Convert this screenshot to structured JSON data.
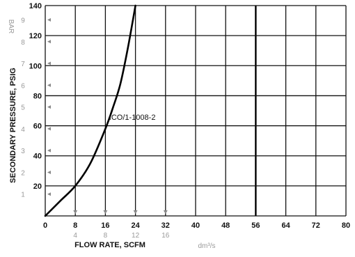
{
  "chart_data": {
    "type": "line",
    "xlabel": "FLOW RATE, SCFM",
    "ylabel": "SECONDARY PRESSURE, PSIG",
    "x_alt_label": "dm³/s",
    "y_alt_label": "BAR",
    "xlim": [
      0,
      80
    ],
    "ylim": [
      0,
      140
    ],
    "x_ticks": [
      0,
      8,
      16,
      24,
      32,
      40,
      48,
      56,
      64,
      72,
      80
    ],
    "y_ticks": [
      20,
      40,
      60,
      80,
      100,
      120,
      140
    ],
    "x_alt_ticks": [
      {
        "label": "4",
        "x": 8
      },
      {
        "label": "8",
        "x": 16
      },
      {
        "label": "12",
        "x": 24
      },
      {
        "label": "16",
        "x": 32
      }
    ],
    "y_alt_ticks": [
      {
        "label": "1",
        "y": 14.5
      },
      {
        "label": "2",
        "y": 29
      },
      {
        "label": "3",
        "y": 43.5
      },
      {
        "label": "4",
        "y": 58
      },
      {
        "label": "5",
        "y": 72.5
      },
      {
        "label": "6",
        "y": 87
      },
      {
        "label": "7",
        "y": 101.5
      },
      {
        "label": "8",
        "y": 116
      },
      {
        "label": "9",
        "y": 130.5
      }
    ],
    "grid": true,
    "heavy_vertical_line_at": 56,
    "series": [
      {
        "name": "ICO/1-1008-2",
        "points": [
          {
            "x": 0,
            "y": 0
          },
          {
            "x": 4,
            "y": 10
          },
          {
            "x": 8,
            "y": 20
          },
          {
            "x": 12,
            "y": 35
          },
          {
            "x": 16,
            "y": 58
          },
          {
            "x": 18,
            "y": 72
          },
          {
            "x": 20,
            "y": 88
          },
          {
            "x": 22,
            "y": 112
          },
          {
            "x": 24,
            "y": 140
          }
        ]
      }
    ],
    "annotations": [
      {
        "text": "ICO/1-1008-2",
        "x": 17,
        "y": 64
      }
    ]
  }
}
